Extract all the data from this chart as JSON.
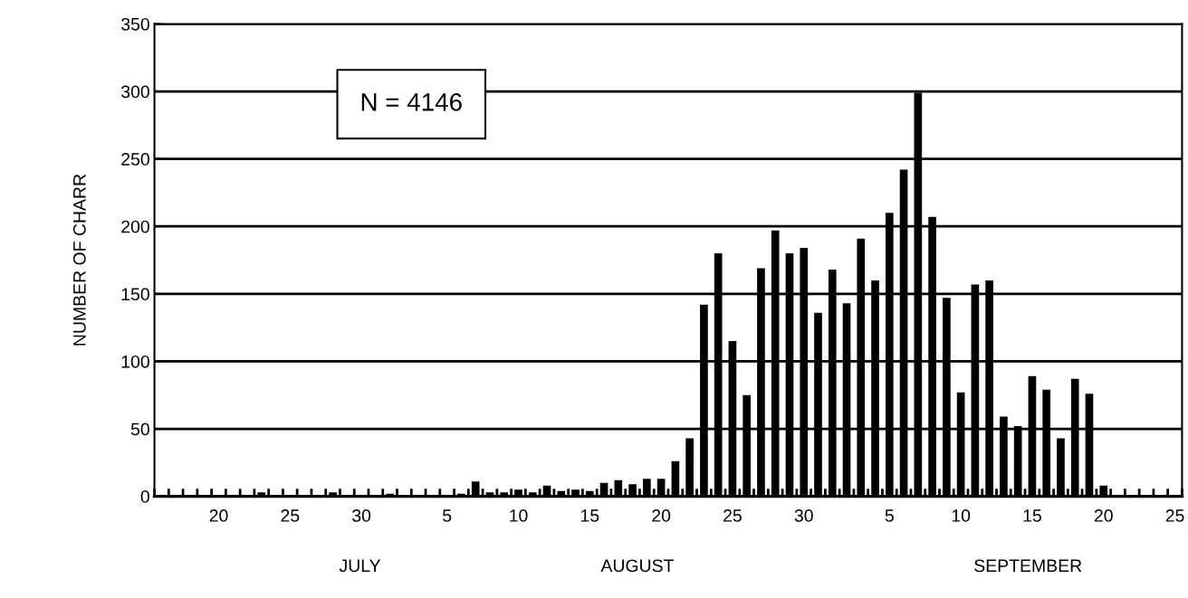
{
  "chart_data": {
    "type": "bar",
    "ylabel": "NUMBER OF CHARR",
    "categories": [
      null,
      null,
      null,
      null,
      "20",
      null,
      null,
      null,
      null,
      "25",
      null,
      null,
      null,
      null,
      "30",
      null,
      null,
      null,
      null,
      null,
      "5",
      null,
      null,
      null,
      null,
      "10",
      null,
      null,
      null,
      null,
      "15",
      null,
      null,
      null,
      null,
      "20",
      null,
      null,
      null,
      null,
      "25",
      null,
      null,
      null,
      null,
      "30",
      null,
      null,
      null,
      null,
      null,
      "5",
      null,
      null,
      null,
      null,
      "10",
      null,
      null,
      null,
      null,
      "15",
      null,
      null,
      null,
      null,
      "20",
      null,
      null,
      null,
      null,
      "25"
    ],
    "values": [
      0,
      0,
      0,
      0,
      0,
      0,
      0,
      3,
      0,
      0,
      0,
      0,
      3,
      0,
      0,
      0,
      2,
      0,
      0,
      0,
      0,
      2,
      11,
      3,
      3,
      5,
      3,
      8,
      4,
      5,
      4,
      10,
      12,
      9,
      13,
      13,
      26,
      43,
      142,
      180,
      115,
      75,
      169,
      197,
      180,
      184,
      136,
      168,
      143,
      191,
      160,
      210,
      242,
      299,
      207,
      147,
      77,
      157,
      160,
      59,
      52,
      89,
      79,
      43,
      87,
      76,
      8,
      0,
      0,
      0,
      0,
      0
    ],
    "color": "#000000",
    "ylim": [
      0,
      350
    ],
    "yticks": [
      0,
      50,
      100,
      150,
      200,
      250,
      300,
      350
    ],
    "grid": "y",
    "annotations": [
      "N = 4146",
      "JULY",
      "AUGUST",
      "SEPTEMBER"
    ]
  }
}
